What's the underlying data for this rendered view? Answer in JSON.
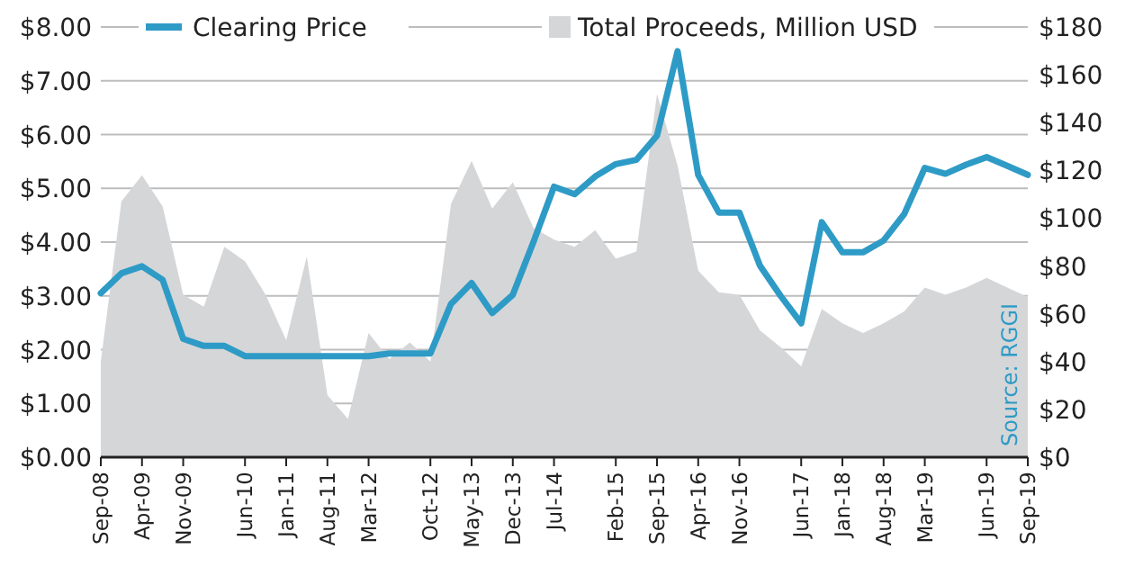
{
  "chart_data": {
    "type": "line",
    "categories": [
      "Sep-08",
      null,
      "Apr-09",
      null,
      "Nov-09",
      null,
      null,
      "Jun-10",
      null,
      "Jan-11",
      null,
      "Aug-11",
      null,
      "Mar-12",
      null,
      null,
      "Oct-12",
      null,
      "May-13",
      null,
      "Dec-13",
      null,
      "Jul-14",
      null,
      null,
      "Feb-15",
      null,
      "Sep-15",
      null,
      "Apr-16",
      null,
      "Nov-16",
      null,
      null,
      "Jun-17",
      null,
      "Jan-18",
      null,
      "Aug-18",
      null,
      "Mar-19",
      null,
      null,
      "Jun-19",
      null,
      "Sep-19"
    ],
    "series": [
      {
        "name": "Clearing Price",
        "axis": "y",
        "color": "#2e9bc6",
        "values": [
          3.05,
          3.42,
          3.55,
          3.3,
          2.2,
          2.07,
          2.07,
          1.88,
          1.88,
          1.88,
          1.88,
          1.88,
          1.88,
          1.88,
          1.93,
          1.93,
          1.93,
          2.85,
          3.24,
          2.68,
          3.02,
          4.0,
          5.03,
          4.89,
          5.22,
          5.45,
          5.53,
          5.98,
          7.55,
          5.25,
          4.55,
          4.55,
          3.56,
          3.0,
          2.49,
          4.37,
          3.81,
          3.81,
          4.03,
          4.52,
          5.38,
          5.27,
          5.44,
          5.58,
          5.42,
          5.25
        ]
      },
      {
        "name": "Total Proceeds, Million USD",
        "type": "area",
        "axis": "y2",
        "color": "#d5d6d8",
        "values": [
          40,
          107,
          118,
          105,
          68,
          63,
          88,
          82,
          68,
          49,
          84,
          26,
          16,
          52,
          41,
          48,
          40,
          106,
          124,
          104,
          115,
          96,
          91,
          88,
          95,
          83,
          86,
          152,
          122,
          78,
          69,
          68,
          53,
          46,
          38,
          62,
          56,
          52,
          56,
          61,
          71,
          68,
          71,
          75,
          71,
          67
        ]
      }
    ],
    "ylim": [
      0,
      8
    ],
    "yticks": [
      {
        "value": 0,
        "label": "$0.00"
      },
      {
        "value": 1,
        "label": "$1.00"
      },
      {
        "value": 2,
        "label": "$2.00"
      },
      {
        "value": 3,
        "label": "$3.00"
      },
      {
        "value": 4,
        "label": "$4.00"
      },
      {
        "value": 5,
        "label": "$5.00"
      },
      {
        "value": 6,
        "label": "$6.00"
      },
      {
        "value": 7,
        "label": "$7.00"
      },
      {
        "value": 8,
        "label": "$8.00"
      }
    ],
    "y2lim": [
      0,
      180
    ],
    "y2ticks": [
      {
        "value": 0,
        "label": "$0"
      },
      {
        "value": 20,
        "label": "$20"
      },
      {
        "value": 40,
        "label": "$40"
      },
      {
        "value": 60,
        "label": "$60"
      },
      {
        "value": 80,
        "label": "$80"
      },
      {
        "value": 100,
        "label": "$100"
      },
      {
        "value": 120,
        "label": "$120"
      },
      {
        "value": 140,
        "label": "$140"
      },
      {
        "value": 160,
        "label": "$160"
      },
      {
        "value": 180,
        "label": "$180"
      }
    ],
    "grid": "y",
    "legend": "top",
    "annotations": [
      "Source: RGGI"
    ]
  }
}
